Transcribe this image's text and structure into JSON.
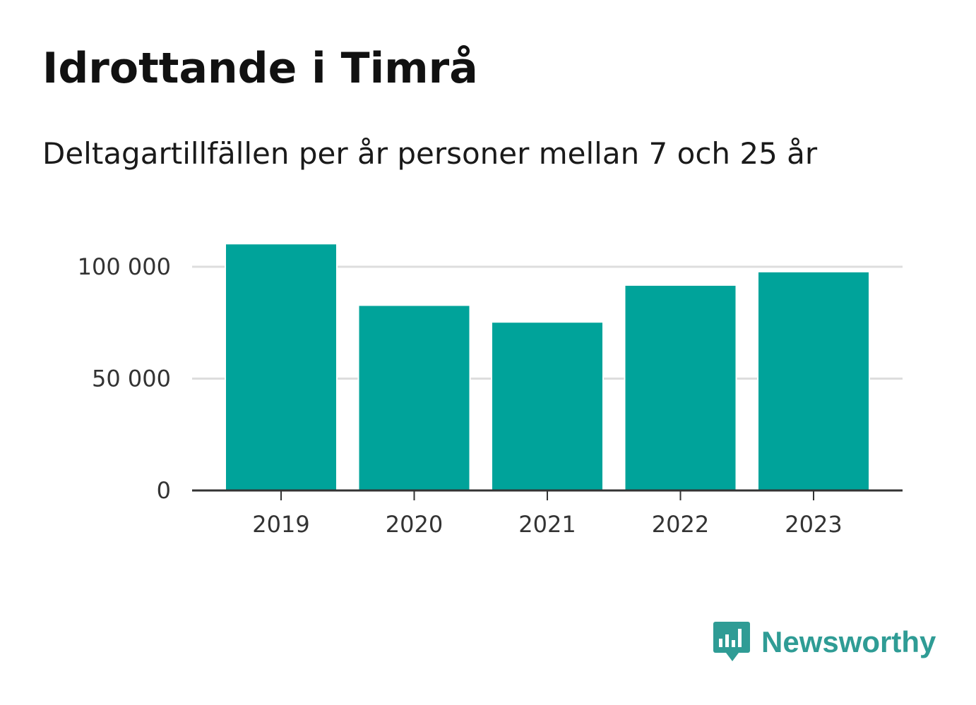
{
  "header": {
    "title": "Idrottande i Timrå",
    "subtitle": "Deltagartillfällen per år personer mellan 7 och 25 år"
  },
  "chart_data": {
    "type": "bar",
    "categories": [
      "2019",
      "2020",
      "2021",
      "2022",
      "2023"
    ],
    "values": [
      110000,
      82500,
      75000,
      91500,
      97500
    ],
    "y_ticks": [
      0,
      50000,
      100000
    ],
    "y_tick_labels": [
      "0",
      "50 000",
      "100 000"
    ],
    "ylim": [
      0,
      100000
    ],
    "grid": true,
    "bar_color": "#00a39a",
    "grid_color": "#dddddd",
    "axis_color": "#333333"
  },
  "brand": {
    "name": "Newsworthy",
    "icon": "newsworthy-logo-icon",
    "color": "#2f9c95"
  }
}
